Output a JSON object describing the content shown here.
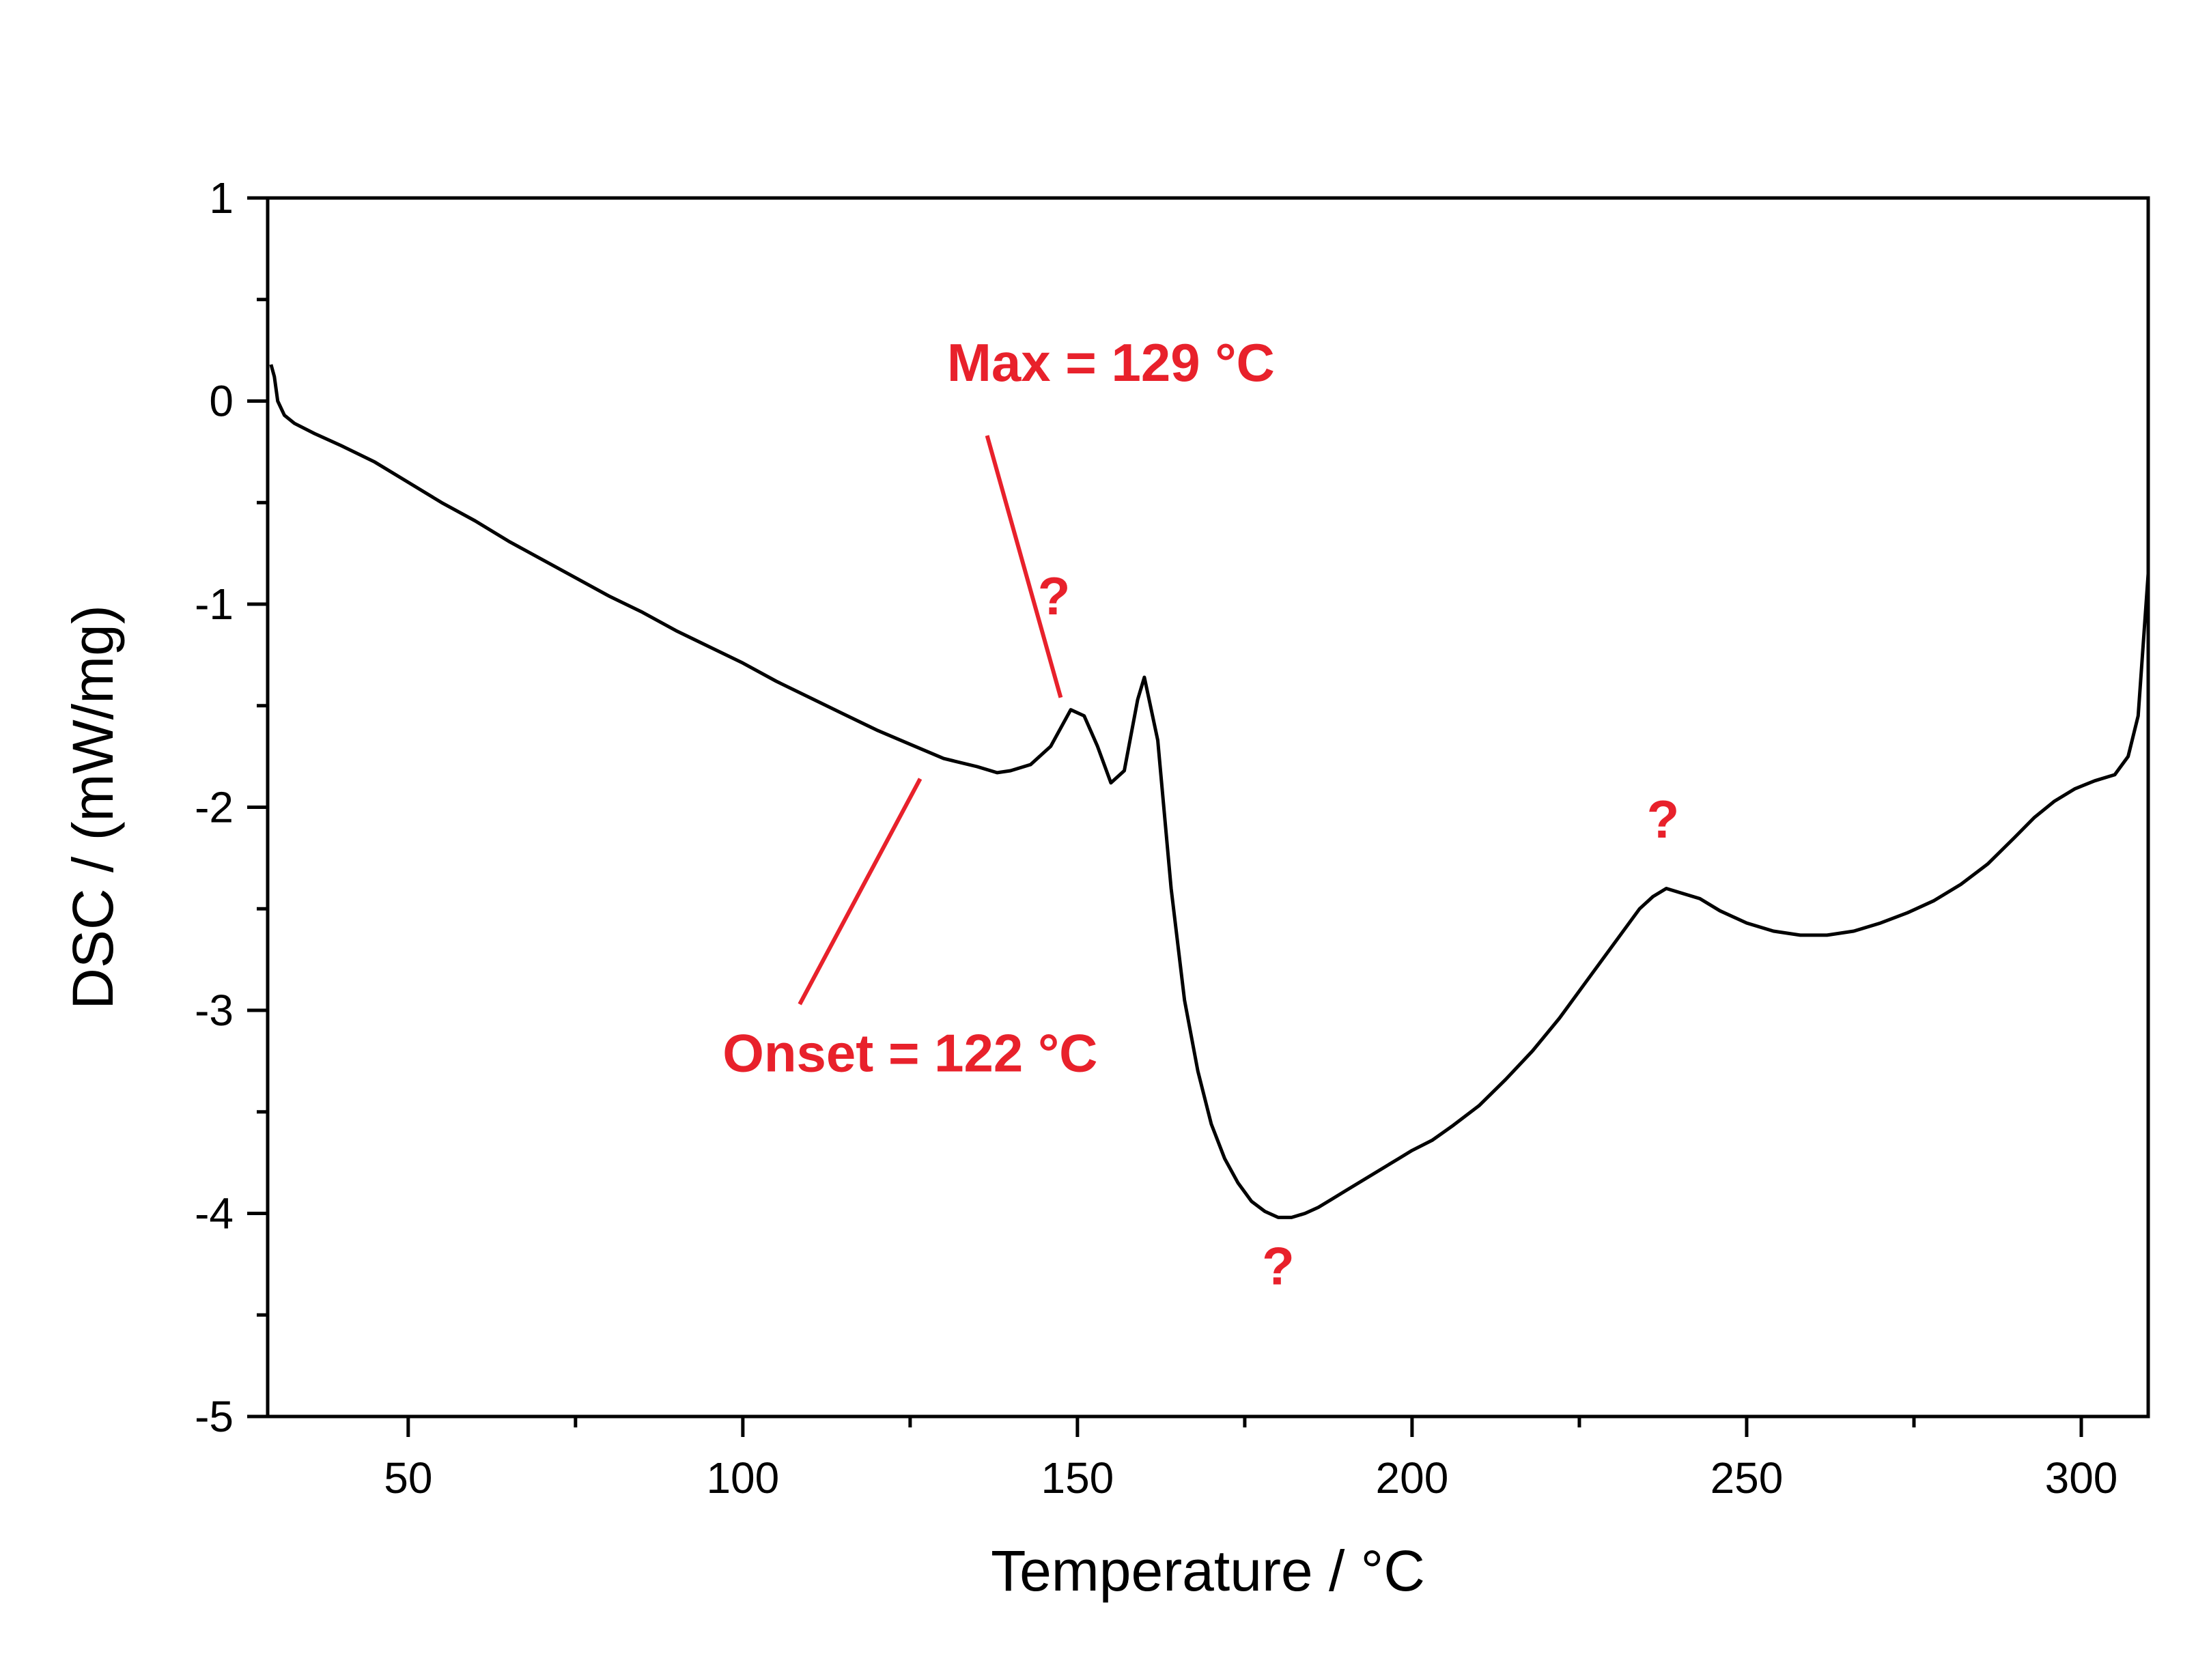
{
  "chart_data": {
    "type": "line",
    "title": "",
    "xlabel": "Temperature / °C",
    "ylabel": "DSC / (mW/mg)",
    "xlim": [
      29,
      310
    ],
    "ylim": [
      -5,
      1
    ],
    "x_ticks": [
      50,
      100,
      150,
      200,
      250,
      300
    ],
    "x_tick_labels": [
      "50",
      "100",
      "150",
      "200",
      "250",
      "300"
    ],
    "y_ticks": [
      1,
      0,
      -1,
      -2,
      -3,
      -4,
      -5
    ],
    "y_tick_labels": [
      "1",
      "0",
      "-1",
      "-2",
      "-3",
      "-4",
      "-5"
    ],
    "grid": false,
    "series": [
      {
        "name": "DSC",
        "color": "#000000",
        "points": [
          [
            29.5,
            0.18
          ],
          [
            30.0,
            0.12
          ],
          [
            30.5,
            0.0
          ],
          [
            31.5,
            -0.07
          ],
          [
            33,
            -0.11
          ],
          [
            36,
            -0.16
          ],
          [
            40,
            -0.22
          ],
          [
            45,
            -0.3
          ],
          [
            50,
            -0.4
          ],
          [
            55,
            -0.5
          ],
          [
            60,
            -0.59
          ],
          [
            65,
            -0.69
          ],
          [
            70,
            -0.78
          ],
          [
            75,
            -0.87
          ],
          [
            80,
            -0.96
          ],
          [
            85,
            -1.04
          ],
          [
            90,
            -1.13
          ],
          [
            95,
            -1.21
          ],
          [
            100,
            -1.29
          ],
          [
            105,
            -1.38
          ],
          [
            110,
            -1.46
          ],
          [
            115,
            -1.54
          ],
          [
            120,
            -1.62
          ],
          [
            125,
            -1.69
          ],
          [
            130,
            -1.76
          ],
          [
            135,
            -1.8
          ],
          [
            138,
            -1.83
          ],
          [
            140,
            -1.82
          ],
          [
            143,
            -1.79
          ],
          [
            146,
            -1.7
          ],
          [
            149,
            -1.52
          ],
          [
            151,
            -1.55
          ],
          [
            153,
            -1.7
          ],
          [
            155,
            -1.88
          ],
          [
            157,
            -1.82
          ],
          [
            159,
            -1.47
          ],
          [
            160,
            -1.36
          ],
          [
            162,
            -1.67
          ],
          [
            164,
            -2.4
          ],
          [
            166,
            -2.95
          ],
          [
            168,
            -3.3
          ],
          [
            170,
            -3.56
          ],
          [
            172,
            -3.73
          ],
          [
            174,
            -3.85
          ],
          [
            176,
            -3.94
          ],
          [
            178,
            -3.99
          ],
          [
            180,
            -4.02
          ],
          [
            182,
            -4.02
          ],
          [
            184,
            -4.0
          ],
          [
            186,
            -3.97
          ],
          [
            188,
            -3.93
          ],
          [
            190,
            -3.89
          ],
          [
            192,
            -3.85
          ],
          [
            194,
            -3.81
          ],
          [
            196,
            -3.77
          ],
          [
            198,
            -3.73
          ],
          [
            200,
            -3.69
          ],
          [
            203,
            -3.64
          ],
          [
            206,
            -3.57
          ],
          [
            210,
            -3.47
          ],
          [
            214,
            -3.34
          ],
          [
            218,
            -3.2
          ],
          [
            222,
            -3.04
          ],
          [
            226,
            -2.86
          ],
          [
            230,
            -2.68
          ],
          [
            234,
            -2.5
          ],
          [
            236,
            -2.44
          ],
          [
            238,
            -2.4
          ],
          [
            240,
            -2.42
          ],
          [
            243,
            -2.45
          ],
          [
            246,
            -2.51
          ],
          [
            250,
            -2.57
          ],
          [
            254,
            -2.61
          ],
          [
            258,
            -2.63
          ],
          [
            262,
            -2.63
          ],
          [
            266,
            -2.61
          ],
          [
            270,
            -2.57
          ],
          [
            274,
            -2.52
          ],
          [
            278,
            -2.46
          ],
          [
            282,
            -2.38
          ],
          [
            286,
            -2.28
          ],
          [
            290,
            -2.15
          ],
          [
            293,
            -2.05
          ],
          [
            296,
            -1.97
          ],
          [
            299,
            -1.91
          ],
          [
            302,
            -1.87
          ],
          [
            305,
            -1.84
          ],
          [
            307,
            -1.75
          ],
          [
            308.5,
            -1.55
          ],
          [
            310,
            -0.85
          ]
        ]
      }
    ],
    "annotations": [
      {
        "text": "Max = 129 °C",
        "color": "#e8212b",
        "label_x": 155,
        "label_y": 0.1
      },
      {
        "text": "Onset = 122 °C",
        "color": "#e8212b",
        "label_x": 125,
        "label_y": -3.3
      },
      {
        "text": "?",
        "color": "#e8212b",
        "label_x": 146.5,
        "label_y": -1.05
      },
      {
        "text": "?",
        "color": "#e8212b",
        "label_x": 180,
        "label_y": -4.35
      },
      {
        "text": "?",
        "color": "#e8212b",
        "label_x": 237.5,
        "label_y": -2.15
      }
    ],
    "leader_lines": [
      {
        "color": "#e8212b",
        "from": [
          136.5,
          -0.17
        ],
        "to": [
          147.5,
          -1.46
        ]
      },
      {
        "color": "#e8212b",
        "from": [
          108.5,
          -2.97
        ],
        "to": [
          126.5,
          -1.86
        ]
      }
    ]
  }
}
